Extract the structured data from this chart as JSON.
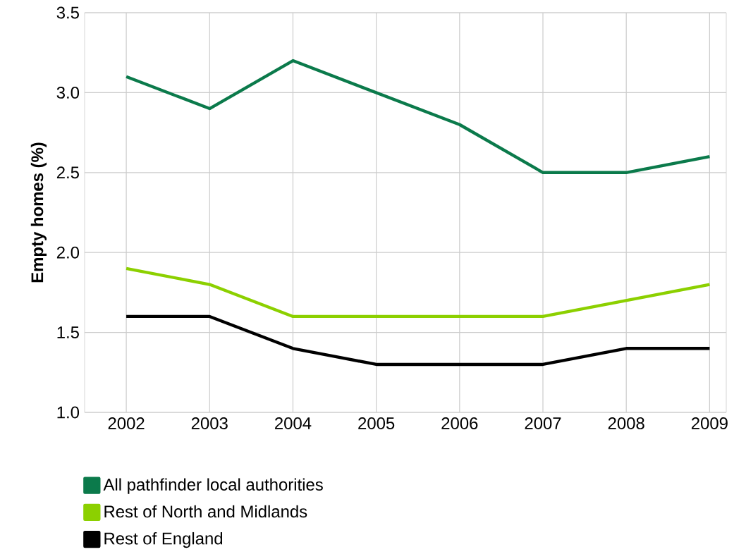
{
  "chart_data": {
    "type": "line",
    "ylabel": "Empty homes (%)",
    "x": [
      2002,
      2003,
      2004,
      2005,
      2006,
      2007,
      2008,
      2009
    ],
    "xlim": [
      2001.5,
      2009.2
    ],
    "xticks": [
      2002,
      2003,
      2004,
      2005,
      2006,
      2007,
      2008,
      2009
    ],
    "ylim": [
      1.0,
      3.5
    ],
    "yticks": [
      {
        "value": 1.0,
        "label": "1.0"
      },
      {
        "value": 1.5,
        "label": "1.5"
      },
      {
        "value": 2.0,
        "label": "2.0"
      },
      {
        "value": 2.5,
        "label": "2.5"
      },
      {
        "value": 3.0,
        "label": "3.0"
      },
      {
        "value": 3.5,
        "label": "3.5"
      }
    ],
    "grid": true,
    "legend": "bottom left",
    "marker": "none",
    "line_style": "solid",
    "series": [
      {
        "name": "All pathfinder local authorities",
        "color": "#0b7a4b",
        "values": [
          3.1,
          2.9,
          3.2,
          3.0,
          2.8,
          2.5,
          2.5,
          2.6
        ]
      },
      {
        "name": "Rest of North and Midlands",
        "color": "#8cd000",
        "values": [
          1.9,
          1.8,
          1.6,
          1.6,
          1.6,
          1.6,
          1.7,
          1.8
        ]
      },
      {
        "name": "Rest of England",
        "color": "#000000",
        "values": [
          1.6,
          1.6,
          1.4,
          1.3,
          1.3,
          1.3,
          1.4,
          1.4
        ]
      }
    ]
  }
}
